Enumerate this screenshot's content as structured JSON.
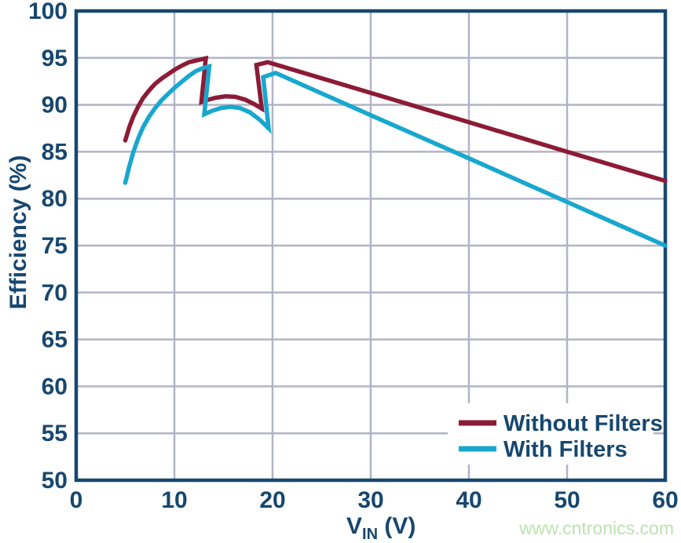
{
  "watermark": "www.cntronics.com",
  "chart_data": {
    "type": "line",
    "title": "",
    "ylabel": "Efficiency (%)",
    "xlabel": "VIN (V)",
    "xlabel_parts": {
      "base": "V",
      "sub": "IN",
      "rest": " (V)"
    },
    "xlim": [
      0,
      60
    ],
    "ylim": [
      50,
      100
    ],
    "x_ticks": [
      0,
      10,
      20,
      30,
      40,
      50,
      60
    ],
    "y_ticks": [
      50,
      55,
      60,
      65,
      70,
      75,
      80,
      85,
      90,
      95,
      100
    ],
    "grid": true,
    "legend_position": "inside-bottom-right",
    "colors": {
      "axis_frame": "#17476f",
      "grid_line": "#b2b4c6",
      "tick_label": "#17476f",
      "watermark_green": "#bce2af",
      "background": "#ffffff"
    },
    "series": [
      {
        "name": "Without Filters",
        "color": "#8c1b36",
        "points": [
          [
            5,
            86.2
          ],
          [
            5.4,
            87.6
          ],
          [
            5.8,
            88.7
          ],
          [
            6.3,
            89.8
          ],
          [
            6.8,
            90.7
          ],
          [
            7.4,
            91.5
          ],
          [
            8,
            92.2
          ],
          [
            8.7,
            92.8
          ],
          [
            9.4,
            93.3
          ],
          [
            10.1,
            93.8
          ],
          [
            10.8,
            94.2
          ],
          [
            11.5,
            94.55
          ],
          [
            12.3,
            94.75
          ],
          [
            13.2,
            94.95
          ],
          [
            12.75,
            90.3
          ],
          [
            13.3,
            90.5
          ],
          [
            14.2,
            90.75
          ],
          [
            15.2,
            90.9
          ],
          [
            16.2,
            90.85
          ],
          [
            17.2,
            90.55
          ],
          [
            18.1,
            90.1
          ],
          [
            18.9,
            89.6
          ],
          [
            18.35,
            94.25
          ],
          [
            19.5,
            94.55
          ],
          [
            30,
            91.27
          ],
          [
            40,
            88.15
          ],
          [
            50,
            85.0
          ],
          [
            60,
            81.9
          ]
        ]
      },
      {
        "name": "With Filters",
        "color": "#18a7cf",
        "points": [
          [
            5,
            81.7
          ],
          [
            5.4,
            83.4
          ],
          [
            5.8,
            84.9
          ],
          [
            6.3,
            86.4
          ],
          [
            6.8,
            87.6
          ],
          [
            7.4,
            88.7
          ],
          [
            8,
            89.6
          ],
          [
            8.7,
            90.5
          ],
          [
            9.4,
            91.2
          ],
          [
            10.1,
            91.9
          ],
          [
            10.8,
            92.5
          ],
          [
            11.5,
            93.1
          ],
          [
            12.2,
            93.6
          ],
          [
            13.0,
            93.95
          ],
          [
            13.55,
            94.1
          ],
          [
            13.05,
            89.0
          ],
          [
            13.8,
            89.35
          ],
          [
            14.7,
            89.65
          ],
          [
            15.7,
            89.8
          ],
          [
            16.7,
            89.65
          ],
          [
            17.7,
            89.2
          ],
          [
            18.7,
            88.4
          ],
          [
            19.6,
            87.5
          ],
          [
            19.05,
            92.95
          ],
          [
            20.3,
            93.4
          ],
          [
            30,
            88.9
          ],
          [
            40,
            84.3
          ],
          [
            50,
            79.65
          ],
          [
            60,
            75.0
          ]
        ]
      }
    ]
  }
}
